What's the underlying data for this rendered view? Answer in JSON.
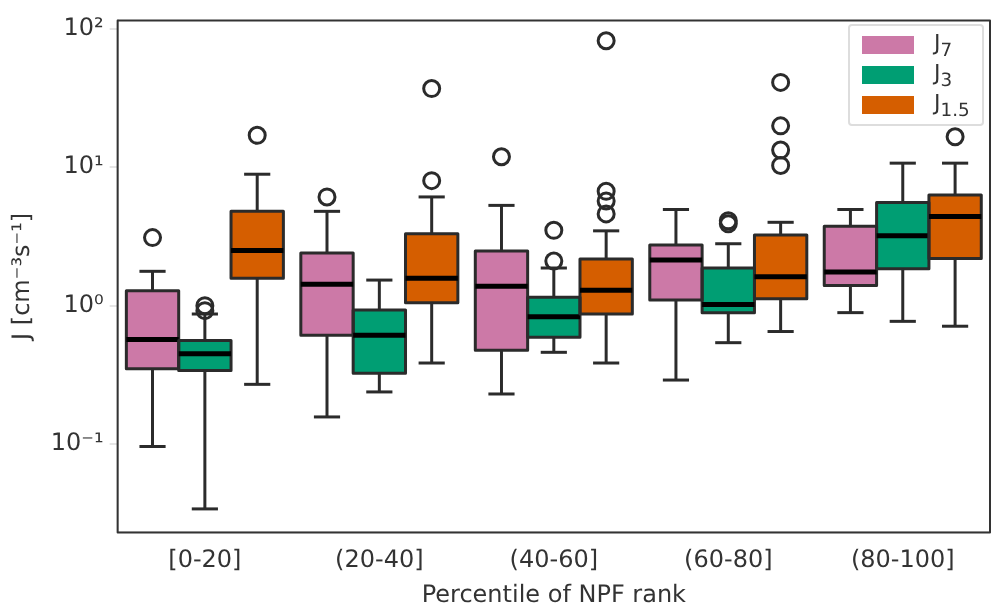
{
  "chart_data": {
    "type": "box",
    "xlabel": "Percentile of NPF rank",
    "ylabel": "J [cm⁻³s⁻¹]",
    "categories": [
      "[0-20]",
      "(20-40]",
      "(40-60]",
      "(60-80]",
      "(80-100]"
    ],
    "log": "y",
    "ylim": [
      0.023,
      115
    ],
    "yticks": [
      {
        "value": 0.1,
        "label": "10⁻¹"
      },
      {
        "value": 1,
        "label": "10⁰"
      },
      {
        "value": 10,
        "label": "10¹"
      },
      {
        "value": 100,
        "label": "10²"
      }
    ],
    "legend": "top right",
    "grid": false,
    "series": [
      {
        "name": "J$_{7}$",
        "color": "#cc79a7",
        "boxes": [
          {
            "low": 0.096,
            "q1": 0.35,
            "median": 0.57,
            "q3": 1.28,
            "high": 1.77,
            "outliers": [
              3.1
            ]
          },
          {
            "low": 0.157,
            "q1": 0.61,
            "median": 1.43,
            "q3": 2.4,
            "high": 4.8,
            "outliers": [
              6.1
            ]
          },
          {
            "low": 0.23,
            "q1": 0.477,
            "median": 1.38,
            "q3": 2.48,
            "high": 5.3,
            "outliers": [
              11.9
            ]
          },
          {
            "low": 0.29,
            "q1": 1.1,
            "median": 2.14,
            "q3": 2.74,
            "high": 4.95
          },
          {
            "low": 0.89,
            "q1": 1.4,
            "median": 1.75,
            "q3": 3.75,
            "high": 4.95
          }
        ]
      },
      {
        "name": "J$_{3}$",
        "color": "#009e73",
        "boxes": [
          {
            "low": 0.034,
            "q1": 0.34,
            "median": 0.45,
            "q3": 0.56,
            "high": 0.87,
            "outliers": [
              1.0,
              0.92
            ]
          },
          {
            "low": 0.238,
            "q1": 0.325,
            "median": 0.61,
            "q3": 0.93,
            "high": 1.53
          },
          {
            "low": 0.46,
            "q1": 0.59,
            "median": 0.83,
            "q3": 1.15,
            "high": 1.87,
            "outliers": [
              3.5,
              2.1
            ]
          },
          {
            "low": 0.54,
            "q1": 0.89,
            "median": 1.02,
            "q3": 1.87,
            "high": 2.8,
            "outliers": [
              4.1,
              3.9
            ]
          },
          {
            "low": 0.77,
            "q1": 1.85,
            "median": 3.2,
            "q3": 5.55,
            "high": 10.7
          }
        ]
      },
      {
        "name": "J$_{1.5}$",
        "color": "#d55e00",
        "boxes": [
          {
            "low": 0.27,
            "q1": 1.58,
            "median": 2.5,
            "q3": 4.8,
            "high": 8.9,
            "outliers": [
              17
            ]
          },
          {
            "low": 0.385,
            "q1": 1.05,
            "median": 1.58,
            "q3": 3.3,
            "high": 6.1,
            "outliers": [
              8.0,
              37
            ]
          },
          {
            "low": 0.385,
            "q1": 0.87,
            "median": 1.29,
            "q3": 2.17,
            "high": 3.47,
            "outliers": [
              82,
              6.7,
              5.7,
              4.6
            ]
          },
          {
            "low": 0.65,
            "q1": 1.12,
            "median": 1.62,
            "q3": 3.24,
            "high": 4.0,
            "outliers": [
              41,
              19.9,
              13.3,
              10.3
            ]
          },
          {
            "low": 0.71,
            "q1": 2.19,
            "median": 4.4,
            "q3": 6.3,
            "high": 10.7,
            "outliers": [
              16.6
            ]
          }
        ]
      }
    ]
  }
}
